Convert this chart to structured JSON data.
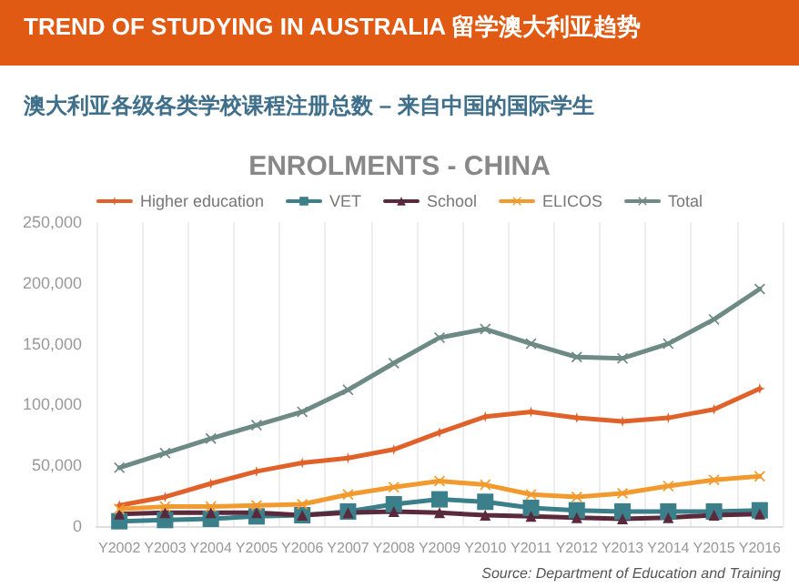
{
  "chart_data": {
    "type": "line",
    "title": "TREND OF STUDYING IN AUSTRALIA 留学澳大利亚趋势",
    "subtitle": "澳大利亚各级各类学校课程注册总数 – 来自中国的国际学生",
    "annotations": [
      "ENROLMENTS - CHINA",
      "Source: Department of Education and Training"
    ],
    "categories": [
      "Y2002",
      "Y2003",
      "Y2004",
      "Y2005",
      "Y2006",
      "Y2007",
      "Y2008",
      "Y2009",
      "Y2010",
      "Y2011",
      "Y2012",
      "Y2013",
      "Y2014",
      "Y2015",
      "Y2016"
    ],
    "series": [
      {
        "name": "Higher education",
        "color": "#e0622a",
        "marker": "star",
        "values": [
          17000,
          24000,
          35000,
          45000,
          52000,
          56000,
          63000,
          77000,
          90000,
          94000,
          89000,
          86000,
          89000,
          96000,
          113000
        ]
      },
      {
        "name": "VET",
        "color": "#3a7f8a",
        "marker": "square",
        "values": [
          4000,
          5000,
          6000,
          8000,
          9000,
          12000,
          18000,
          22000,
          20000,
          15000,
          13000,
          12000,
          12000,
          12000,
          13000
        ]
      },
      {
        "name": "School",
        "color": "#5a2a3c",
        "marker": "triangle",
        "values": [
          10000,
          11000,
          11000,
          11000,
          9000,
          11000,
          12000,
          11000,
          9000,
          8000,
          7000,
          6000,
          7000,
          9000,
          10000
        ]
      },
      {
        "name": "ELICOS",
        "color": "#f29a2e",
        "marker": "cross",
        "values": [
          14000,
          16000,
          16000,
          17000,
          18000,
          26000,
          32000,
          37000,
          34000,
          26000,
          24000,
          27000,
          33000,
          38000,
          41000
        ]
      },
      {
        "name": "Total",
        "color": "#6e8a84",
        "marker": "cross",
        "values": [
          48000,
          60000,
          72000,
          83000,
          94000,
          112000,
          134000,
          155000,
          162000,
          150000,
          139000,
          138000,
          150000,
          170000,
          195000
        ]
      }
    ],
    "ylim": [
      0,
      250000
    ],
    "yticks": [
      0,
      {
        "value": 50000,
        "label": "50,000"
      },
      {
        "value": 100000,
        "label": "100,000"
      },
      {
        "value": 150000,
        "label": "150,000"
      },
      {
        "value": 200000,
        "label": "200,000"
      },
      {
        "value": 250000,
        "label": "250,000"
      }
    ],
    "grid": "x",
    "legend": "top",
    "line_style": "solid"
  }
}
